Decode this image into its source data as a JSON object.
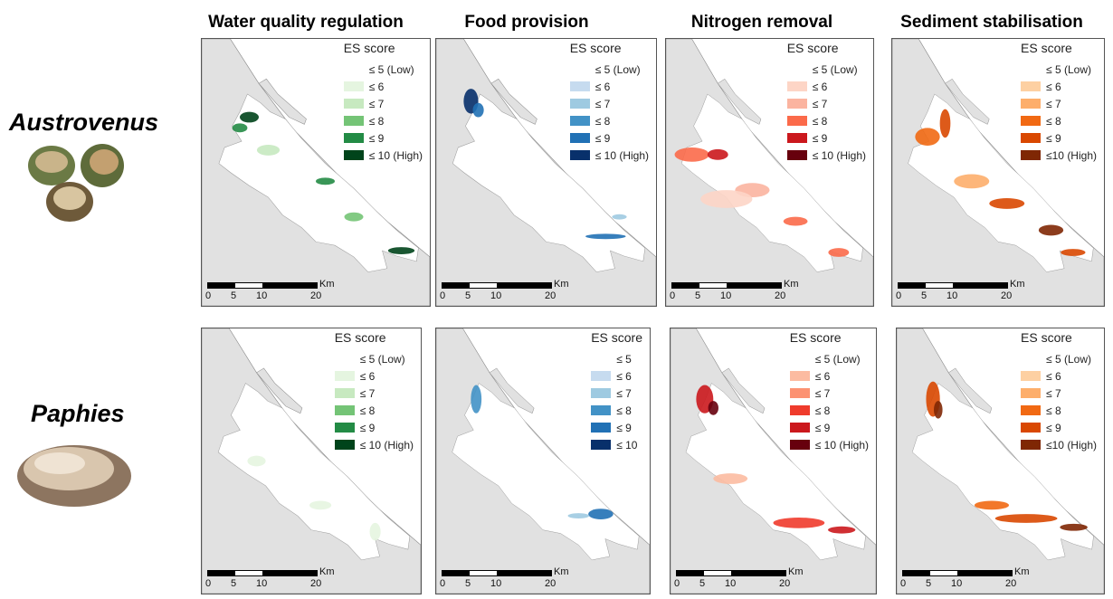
{
  "columns": [
    "Water quality regulation",
    "Food provision",
    "Nitrogen removal",
    "Sediment stabilisation"
  ],
  "species": [
    "Austrovenus",
    "Paphies"
  ],
  "legend_title": "ES score",
  "scale": {
    "ticks": [
      "0",
      "5",
      "10",
      "20"
    ],
    "unit": "Km"
  },
  "panels": [
    {
      "labels": [
        "≤ 5 (Low)",
        "≤ 6",
        "≤ 7",
        "≤ 8",
        "≤ 9",
        "≤ 10 (High)"
      ],
      "colors": [
        "#ffffff",
        "#e5f5e0",
        "#c7e9c0",
        "#74c476",
        "#238b45",
        "#00441b"
      ]
    },
    {
      "labels": [
        "≤ 5 (Low)",
        "≤ 6",
        "≤ 7",
        "≤ 8",
        "≤ 9",
        "≤ 10 (High)"
      ],
      "colors": [
        "#ffffff",
        "#c6dbef",
        "#9ecae1",
        "#4292c6",
        "#2171b5",
        "#08306b"
      ]
    },
    {
      "labels": [
        "≤ 5 (Low)",
        "≤ 6",
        "≤ 7",
        "≤ 8",
        "≤ 9",
        "≤ 10 (High)"
      ],
      "colors": [
        "#ffffff",
        "#fdd5c6",
        "#fbb4a0",
        "#fb6a4a",
        "#cb181d",
        "#67000d"
      ]
    },
    {
      "labels": [
        "≤ 5 (Low)",
        "≤ 6",
        "≤ 7",
        "≤ 8",
        "≤ 9",
        "≤10 (High)"
      ],
      "colors": [
        "#ffffff",
        "#fdd0a2",
        "#fdae6b",
        "#f16913",
        "#d94801",
        "#7f2704"
      ]
    },
    {
      "labels": [
        "≤ 5 (Low)",
        "≤ 6",
        "≤ 7",
        "≤ 8",
        "≤ 9",
        "≤ 10 (High)"
      ],
      "colors": [
        "#ffffff",
        "#e5f5e0",
        "#c7e9c0",
        "#74c476",
        "#238b45",
        "#00441b"
      ]
    },
    {
      "labels": [
        "≤ 5",
        "≤ 6",
        "≤ 7",
        "≤ 8",
        "≤ 9",
        "≤ 10"
      ],
      "colors": [
        "#ffffff",
        "#c6dbef",
        "#9ecae1",
        "#4292c6",
        "#2171b5",
        "#08306b"
      ]
    },
    {
      "labels": [
        "≤ 5 (Low)",
        "≤ 6",
        "≤ 7",
        "≤ 8",
        "≤ 9",
        "≤ 10 (High)"
      ],
      "colors": [
        "#ffffff",
        "#fcbba1",
        "#fc9272",
        "#ef3b2c",
        "#cb181d",
        "#67000d"
      ]
    },
    {
      "labels": [
        "≤ 5 (Low)",
        "≤ 6",
        "≤ 7",
        "≤ 8",
        "≤ 9",
        "≤10 (High)"
      ],
      "colors": [
        "#ffffff",
        "#fdd0a2",
        "#fdae6b",
        "#f16913",
        "#d94801",
        "#7f2704"
      ]
    }
  ]
}
